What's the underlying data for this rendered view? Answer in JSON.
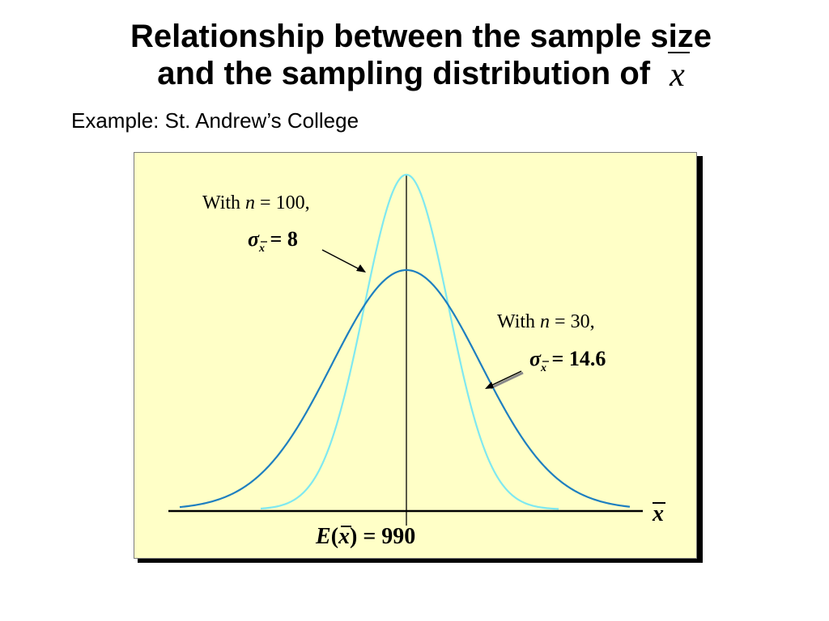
{
  "title": {
    "line1": "Relationship between the sample size",
    "line2": "and the sampling distribution of",
    "symbol": "x"
  },
  "subtitle": "Example:  St. Andrew’s College",
  "diagram": {
    "mean_label": "E(x) = 990",
    "axis_label": "x",
    "label_n100": {
      "text": "With n = 100,",
      "sigma": "σx =  8"
    },
    "label_n30": {
      "text": "With n = 30,",
      "sigma": "σx = 14.6"
    }
  },
  "colors": {
    "panel_bg": "#ffffc7",
    "curve_n100": "#7fe8f0",
    "curve_n30": "#1e7fc0",
    "axis": "#000000"
  }
}
